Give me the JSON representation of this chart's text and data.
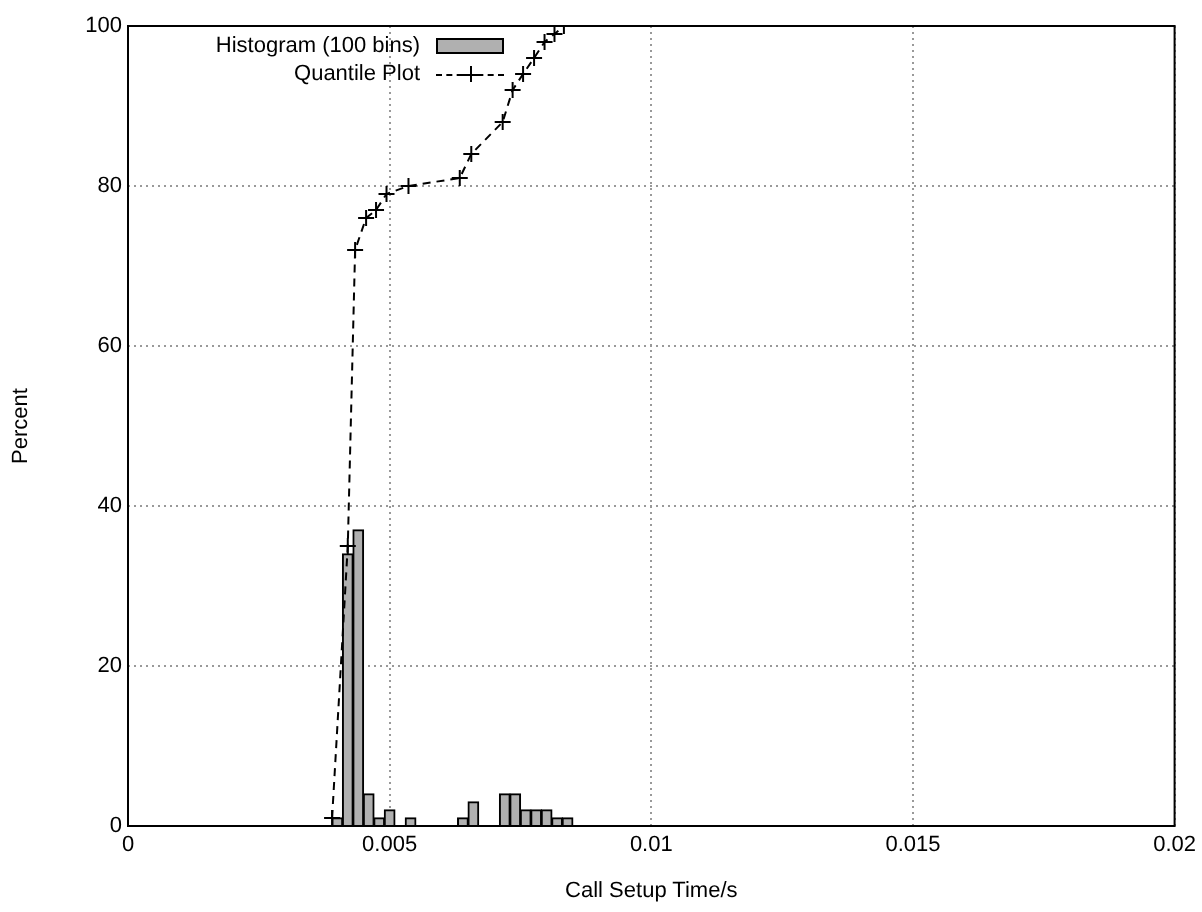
{
  "chart_data": {
    "type": "histogram",
    "xlabel": "Call Setup Time/s",
    "ylabel": "Percent",
    "bins": [
      0.0039,
      0.0041,
      0.0043,
      0.0045,
      0.0047,
      0.0049,
      0.0051,
      0.0053,
      0.0055,
      0.0057,
      0.0059,
      0.0061,
      0.0063,
      0.0065,
      0.0067,
      0.0069,
      0.0071,
      0.0073,
      0.0075,
      0.0077,
      0.0079,
      0.0081,
      0.0083,
      0.0085
    ],
    "series": [
      {
        "name": "Histogram (100 bins)",
        "color": "#b0b0b0",
        "values": [
          1,
          34,
          37,
          4,
          1,
          2,
          0,
          1,
          0,
          0,
          0,
          0,
          1,
          3,
          0,
          0,
          4,
          4,
          2,
          2,
          2,
          1,
          1
        ]
      },
      {
        "name": "Quantile Plot",
        "type": "line",
        "color": "#000000",
        "marker": "cross",
        "line_style": "dashed",
        "x": [
          0.0039,
          0.0042,
          0.00434,
          0.00455,
          0.00474,
          0.00494,
          0.00536,
          0.00634,
          0.00656,
          0.00716,
          0.00735,
          0.00755,
          0.00776,
          0.00796,
          0.00815,
          0.00833
        ],
        "values": [
          1,
          35,
          72,
          76,
          77,
          79,
          80,
          81,
          84,
          88,
          92,
          94,
          96,
          98,
          99,
          100
        ]
      }
    ],
    "xlim": [
      0,
      0.02
    ],
    "xticks": [
      0,
      0.005,
      0.01,
      0.015,
      0.02
    ],
    "ylim": [
      0,
      100
    ],
    "yticks": [
      0,
      20,
      40,
      60,
      80,
      100
    ],
    "grid": true,
    "legend": "top left"
  }
}
